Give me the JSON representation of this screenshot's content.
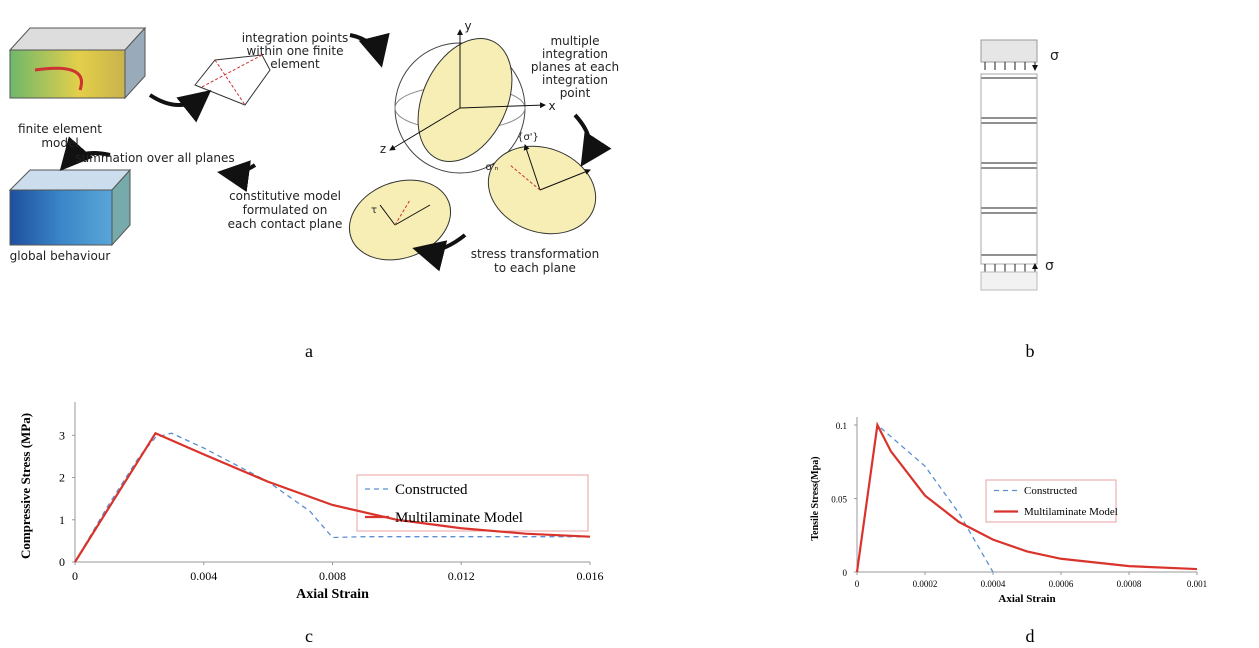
{
  "panel_labels": [
    "a",
    "b",
    "c",
    "d"
  ],
  "diagram_a": {
    "fe_model": [
      "finite element",
      "model"
    ],
    "integration_points": [
      "integration points",
      "within one finite",
      "element"
    ],
    "multiple_planes": [
      "multiple",
      "integration",
      "planes at each",
      "integration",
      "point"
    ],
    "axis_y": "y",
    "axis_x": "x",
    "axis_z": "z",
    "summation": "summation over all planes",
    "constitutive": [
      "constitutive model",
      "formulated on",
      "each contact plane"
    ],
    "stress_transformation": [
      "stress transformation",
      "to each plane"
    ],
    "global": "global behaviour",
    "sigma_vec": "{σ'}",
    "sigma_n": "σ'ₙ",
    "tau": "τ"
  },
  "diagram_b": {
    "sigma_top": "σ",
    "sigma_bottom": "σ"
  },
  "chart_data": [
    {
      "type": "line",
      "xlabel": "Axial Strain",
      "ylabel": "Compressive Stress (MPa)",
      "xlim": [
        0,
        0.016
      ],
      "ylim": [
        0,
        3.6
      ],
      "xticks": [
        0,
        0.004,
        0.008,
        0.012,
        0.016
      ],
      "yticks": [
        0,
        1,
        2,
        3
      ],
      "series": [
        {
          "name": "Constructed",
          "color": "#5b8fd0",
          "dash": true,
          "x": [
            0,
            0.001,
            0.002,
            0.0025,
            0.003,
            0.004,
            0.006,
            0.0073,
            0.008,
            0.009,
            0.012,
            0.016
          ],
          "values": [
            0,
            1.3,
            2.5,
            2.95,
            3.05,
            2.7,
            1.9,
            1.2,
            0.58,
            0.6,
            0.6,
            0.6
          ]
        },
        {
          "name": "Multilaminate Model",
          "color": "#d9332b",
          "dash": false,
          "x": [
            0,
            0.0025,
            0.004,
            0.006,
            0.008,
            0.01,
            0.012,
            0.014,
            0.016
          ],
          "values": [
            0,
            3.05,
            2.55,
            1.9,
            1.35,
            1.0,
            0.8,
            0.67,
            0.6
          ]
        }
      ]
    },
    {
      "type": "line",
      "xlabel": "Axial Strain",
      "ylabel": "Tensile Stress(Mpa)",
      "xlim": [
        0,
        0.001
      ],
      "ylim": [
        0,
        0.1
      ],
      "xticks": [
        0,
        0.0002,
        0.0004,
        0.0006,
        0.0008,
        0.001
      ],
      "yticks": [
        0,
        0.05,
        0.1
      ],
      "series": [
        {
          "name": "Constructed",
          "color": "#5b8fd0",
          "dash": true,
          "x": [
            0,
            6e-05,
            0.0002,
            0.0003,
            0.0004
          ],
          "values": [
            0,
            0.1,
            0.072,
            0.04,
            0
          ]
        },
        {
          "name": "Multilaminate Model",
          "color": "#d9332b",
          "dash": false,
          "x": [
            0,
            6e-05,
            0.0001,
            0.0002,
            0.0003,
            0.0004,
            0.0005,
            0.0006,
            0.0008,
            0.001
          ],
          "values": [
            0,
            0.1,
            0.082,
            0.052,
            0.034,
            0.022,
            0.014,
            0.009,
            0.004,
            0.002
          ]
        }
      ]
    }
  ]
}
